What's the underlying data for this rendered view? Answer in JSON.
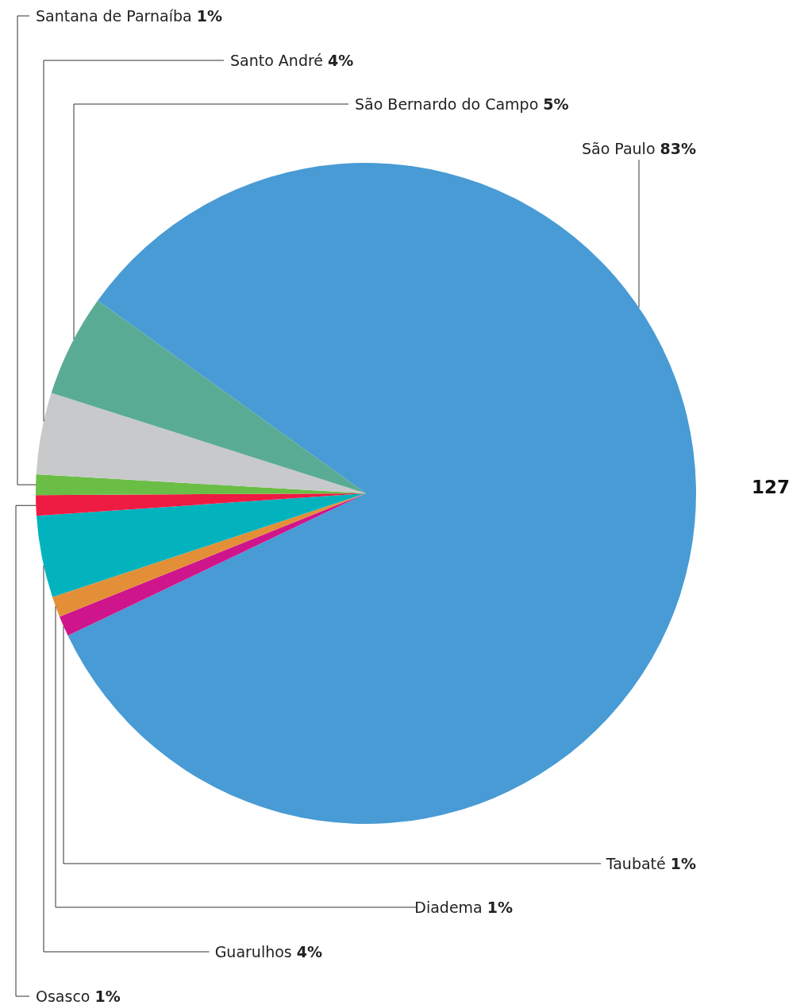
{
  "chart_data": {
    "type": "pie",
    "categories": [
      "São Paulo",
      "Taubaté",
      "Diadema",
      "Guarulhos",
      "Osasco",
      "Santana de Parnaíba",
      "Santo André",
      "São Bernardo do Campo"
    ],
    "values": [
      83,
      1,
      1,
      4,
      1,
      1,
      4,
      5
    ],
    "value_labels": [
      "83%",
      "1%",
      "1%",
      "4%",
      "1%",
      "1%",
      "4%",
      "5%"
    ],
    "colors": [
      "#489bd5",
      "#cf158c",
      "#e38f37",
      "#02b3be",
      "#ee1b43",
      "#6abe45",
      "#c8c9cb",
      "#5aab94"
    ],
    "annotations": [
      "127"
    ]
  }
}
